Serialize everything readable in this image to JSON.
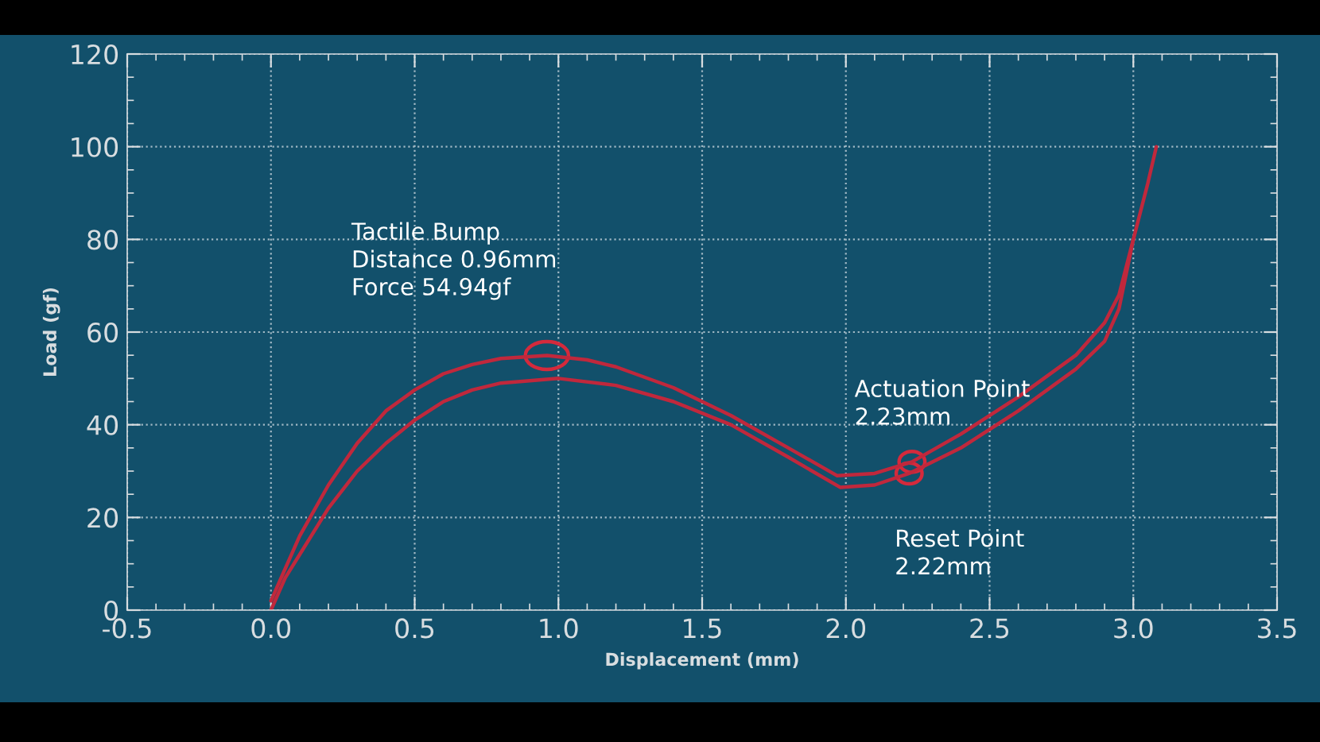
{
  "chart_data": {
    "type": "line",
    "xlabel": "Displacement (mm)",
    "ylabel": "Load (gf)",
    "xlim": [
      -0.5,
      3.5
    ],
    "xticks": [
      {
        "value": -0.5,
        "label": "-0.5"
      },
      {
        "value": 0,
        "label": "0.0"
      },
      {
        "value": 0.5,
        "label": "0.5"
      },
      {
        "value": 1,
        "label": "1.0"
      },
      {
        "value": 1.5,
        "label": "1.5"
      },
      {
        "value": 2,
        "label": "2.0"
      },
      {
        "value": 2.5,
        "label": "2.5"
      },
      {
        "value": 3,
        "label": "3.0"
      },
      {
        "value": 3.5,
        "label": "3.5"
      }
    ],
    "ylim": [
      0,
      120
    ],
    "yticks": [
      0,
      20,
      40,
      60,
      80,
      100,
      120
    ],
    "grid": true,
    "line_style": "solid",
    "marker": "none",
    "series": [
      {
        "color": "#c0283c",
        "x": [
          0,
          0.05,
          0.1,
          0.2,
          0.3,
          0.4,
          0.5,
          0.6,
          0.7,
          0.8,
          0.96,
          1.1,
          1.2,
          1.4,
          1.6,
          1.8,
          1.97,
          2.1,
          2.23,
          2.4,
          2.6,
          2.8,
          2.9,
          2.95,
          3.0,
          3.05,
          3.08
        ],
        "values": [
          2,
          9,
          16,
          27,
          36,
          43,
          47.5,
          51,
          53,
          54.3,
          54.94,
          54,
          52.5,
          48,
          42,
          35,
          29,
          29.5,
          32,
          38,
          46,
          55,
          62,
          68,
          80,
          92,
          100
        ]
      },
      {
        "color": "#c0283c",
        "x": [
          0,
          0.05,
          0.1,
          0.2,
          0.3,
          0.4,
          0.5,
          0.6,
          0.7,
          0.8,
          1.0,
          1.2,
          1.4,
          1.6,
          1.8,
          1.98,
          2.1,
          2.22,
          2.4,
          2.6,
          2.8,
          2.9,
          2.95,
          3.0
        ],
        "values": [
          0,
          7,
          12,
          22,
          30,
          36,
          41,
          45,
          47.5,
          49,
          50,
          48.5,
          45,
          40,
          33,
          26.5,
          27,
          29.5,
          35,
          43,
          52,
          58,
          65,
          80
        ]
      }
    ],
    "annotations": [
      {
        "text": "Tactile Bump\nDistance 0.96mm\nForce 54.94gf",
        "x": 0.96,
        "y": 54.94
      },
      {
        "text": "Actuation Point\n2.23mm",
        "x": 2.23,
        "y": 32
      },
      {
        "text": "Reset Point\n2.22mm",
        "x": 2.22,
        "y": 29.5
      }
    ]
  }
}
